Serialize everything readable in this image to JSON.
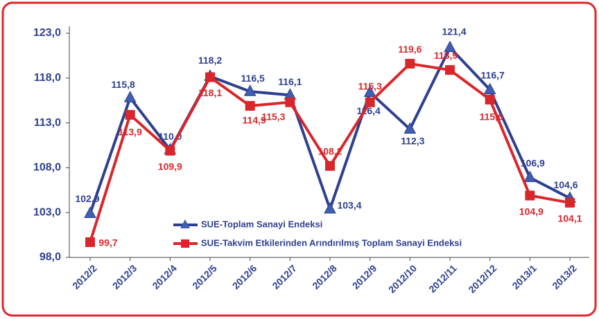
{
  "chart_data": {
    "type": "line",
    "categories": [
      "2012/2",
      "2012/3",
      "2012/4",
      "2012/5",
      "2012/6",
      "2012/7",
      "2012/8",
      "2012/9",
      "2012/10",
      "2012/11",
      "2012/12",
      "2013/1",
      "2013/2"
    ],
    "series": [
      {
        "name": "SUE-Toplam Sanayi Endeksi",
        "color": "#2e3f8f",
        "marker": "triangle",
        "values": [
          102.9,
          115.8,
          110.0,
          118.2,
          116.5,
          116.1,
          103.4,
          116.4,
          112.3,
          121.4,
          116.7,
          106.9,
          104.6
        ],
        "value_labels": [
          "102,9",
          "115,8",
          "110,0",
          "118,2",
          "116,5",
          "116,1",
          "103,4",
          "116,4",
          "112,3",
          "121,4",
          "116,7",
          "106,9",
          "104,6"
        ]
      },
      {
        "name": "SUE-Takvim Etkilerinden Arındırılmış Toplam Sanayi Endeksi",
        "color": "#d9262b",
        "marker": "square",
        "values": [
          99.7,
          113.9,
          109.9,
          118.1,
          114.9,
          115.3,
          108.2,
          115.3,
          119.6,
          118.9,
          115.6,
          104.9,
          104.1
        ],
        "value_labels": [
          "99,7",
          "113,9",
          "109,9",
          "118,1",
          "114,9",
          "115,3",
          "108,2",
          "115,3",
          "119,6",
          "118,9",
          "115,6",
          "104,9",
          "104,1"
        ]
      }
    ],
    "ylim": [
      98.0,
      123.0
    ],
    "yticks": [
      {
        "value": 98.0,
        "label": "98,0"
      },
      {
        "value": 103.0,
        "label": "103,0"
      },
      {
        "value": 108.0,
        "label": "108,0"
      },
      {
        "value": 113.0,
        "label": "113,0"
      },
      {
        "value": 118.0,
        "label": "118,0"
      },
      {
        "value": 123.0,
        "label": "123,0"
      }
    ],
    "grid": false
  }
}
